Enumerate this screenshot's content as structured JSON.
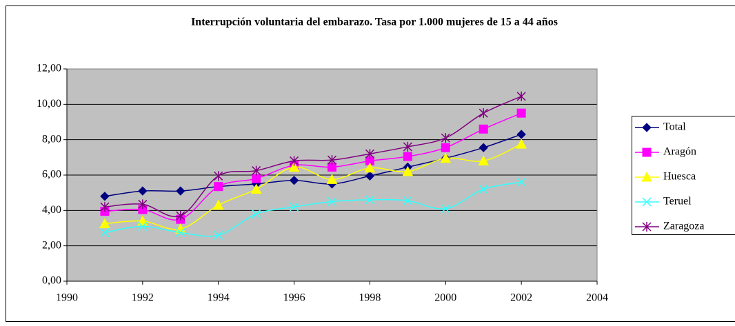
{
  "chart_data": {
    "type": "line",
    "title": "Interrupción voluntaria del embarazo. Tasa por 1.000 mujeres de 15 a 44 años",
    "x": [
      1991,
      1992,
      1993,
      1994,
      1995,
      1996,
      1997,
      1998,
      1999,
      2000,
      2001,
      2002
    ],
    "series": [
      {
        "name": "Total",
        "color": "#000080",
        "marker": "diamond",
        "values": [
          4.8,
          5.1,
          5.1,
          5.35,
          5.5,
          5.7,
          5.5,
          5.95,
          6.45,
          6.95,
          7.55,
          8.3
        ]
      },
      {
        "name": "Aragón",
        "color": "#ff00ff",
        "marker": "square",
        "values": [
          3.95,
          4.05,
          3.5,
          5.35,
          5.8,
          6.55,
          6.45,
          6.8,
          7.05,
          7.55,
          8.6,
          9.5
        ]
      },
      {
        "name": "Huesca",
        "color": "#ffff00",
        "marker": "triangle",
        "values": [
          3.25,
          3.4,
          2.95,
          4.3,
          5.2,
          6.45,
          5.75,
          6.4,
          6.2,
          6.95,
          6.8,
          7.75
        ]
      },
      {
        "name": "Teruel",
        "color": "#33ffff",
        "marker": "x",
        "values": [
          2.75,
          3.1,
          2.75,
          2.6,
          3.8,
          4.2,
          4.5,
          4.6,
          4.55,
          4.1,
          5.2,
          5.6
        ]
      },
      {
        "name": "Zaragoza",
        "color": "#800080",
        "marker": "star",
        "values": [
          4.2,
          4.35,
          3.7,
          5.95,
          6.25,
          6.8,
          6.85,
          7.2,
          7.6,
          8.1,
          9.5,
          10.45
        ]
      }
    ],
    "xlim": [
      1990,
      2004
    ],
    "xticks": [
      1990,
      1992,
      1994,
      1996,
      1998,
      2000,
      2002,
      2004
    ],
    "ylim": [
      0,
      12
    ],
    "yticks": [
      {
        "value": 0,
        "label": "0,00"
      },
      {
        "value": 2,
        "label": "2,00"
      },
      {
        "value": 4,
        "label": "4,00"
      },
      {
        "value": 6,
        "label": "6,00"
      },
      {
        "value": 8,
        "label": "8,00"
      },
      {
        "value": 10,
        "label": "10,00"
      },
      {
        "value": 12,
        "label": "12,00"
      }
    ],
    "grid": true,
    "smooth": true,
    "legend": "right"
  }
}
